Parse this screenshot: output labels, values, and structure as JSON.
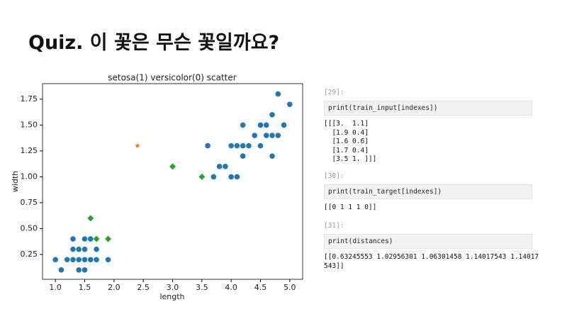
{
  "header": {
    "title": "Quiz. 이 꽃은 무슨 꽃일까요?"
  },
  "chart_data": {
    "type": "scatter",
    "title": "setosa(1) versicolor(0) scatter",
    "x_label": "length",
    "y_label": "width",
    "xlim": [
      0.78,
      5.22
    ],
    "ylim": [
      0.01,
      1.9
    ],
    "xticks": [
      {
        "value": 1,
        "label": "1.0"
      },
      1.5,
      {
        "value": 2,
        "label": "2.0"
      },
      2.5,
      {
        "value": 3,
        "label": "3.0"
      },
      3.5,
      {
        "value": 4,
        "label": "4.0"
      },
      4.5,
      {
        "value": 5,
        "label": "5.0"
      }
    ],
    "yticks": [
      0.25,
      {
        "value": 0.5,
        "label": "0.50"
      },
      0.75,
      {
        "value": 1,
        "label": "1.00"
      },
      1.25,
      {
        "value": 1.5,
        "label": "1.50"
      },
      1.75
    ],
    "grid": false,
    "series": [
      {
        "color": "#1f77b4",
        "marker": "circle",
        "x": [
          1.0,
          1.1,
          1.2,
          1.3,
          1.3,
          1.3,
          1.4,
          1.4,
          1.4,
          1.5,
          1.5,
          1.5,
          1.5,
          1.6,
          1.6,
          1.7,
          1.7,
          1.9,
          3.6,
          3.7,
          3.8,
          3.9,
          4.0,
          4.0,
          4.1,
          4.1,
          4.2,
          4.2,
          4.2,
          4.3,
          4.4,
          4.5,
          4.5,
          4.6,
          4.6,
          4.7,
          4.7,
          4.7,
          4.8,
          4.8,
          4.9,
          5.0
        ],
        "values": [
          0.2,
          0.1,
          0.2,
          0.2,
          0.3,
          0.4,
          0.2,
          0.3,
          0.1,
          0.2,
          0.1,
          0.3,
          0.4,
          0.2,
          0.4,
          0.3,
          0.2,
          0.2,
          1.3,
          1.0,
          1.1,
          1.1,
          1.3,
          1.0,
          1.3,
          1.0,
          1.3,
          1.2,
          1.5,
          1.3,
          1.4,
          1.5,
          1.3,
          1.5,
          1.4,
          1.4,
          1.6,
          1.2,
          1.8,
          1.4,
          1.5,
          1.7
        ]
      },
      {
        "color": "#ff7f0e",
        "marker": "star",
        "x": [
          2.4
        ],
        "values": [
          1.3
        ]
      },
      {
        "color": "#2ca02c",
        "marker": "diamond",
        "x": [
          3.0,
          3.5,
          1.6,
          1.7,
          1.9
        ],
        "values": [
          1.1,
          1.0,
          0.6,
          0.4,
          0.4
        ]
      }
    ]
  },
  "cells": [
    {
      "prompt": "[29]:",
      "code": "print(train_input[indexes])",
      "output": [
        "[[[3.  1.1]",
        "  [1.9 0.4]",
        "  [1.6 0.6]",
        "  [1.7 0.4]",
        "  [3.5 1. ]]]"
      ]
    },
    {
      "prompt": "[30]:",
      "code": "print(train_target[indexes])",
      "output": [
        "[[0 1 1 1 0]]"
      ]
    },
    {
      "prompt": "[31]:",
      "code": "print(distances)",
      "output": [
        "[[0.63245553 1.02956301 1.06301458 1.14017543 1.14017",
        "543]]"
      ]
    }
  ]
}
